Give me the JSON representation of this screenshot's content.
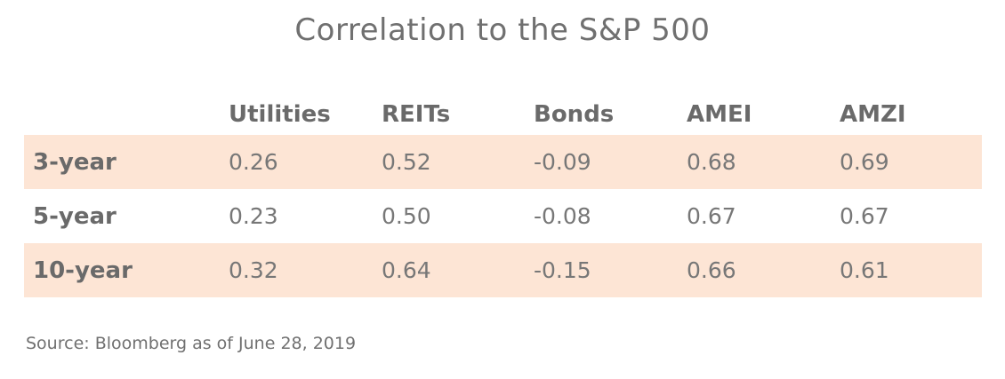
{
  "chart_data": {
    "type": "table",
    "title": "Correlation to the S&P 500",
    "columns": [
      "Utilities",
      "REITs",
      "Bonds",
      "AMEI",
      "AMZI"
    ],
    "rows": [
      {
        "label": "3-year",
        "values": [
          "0.26",
          "0.52",
          "-0.09",
          "0.68",
          "0.69"
        ],
        "shaded": true
      },
      {
        "label": "5-year",
        "values": [
          "0.23",
          "0.50",
          "-0.08",
          "0.67",
          "0.67"
        ],
        "shaded": false
      },
      {
        "label": "10-year",
        "values": [
          "0.32",
          "0.64",
          "-0.15",
          "0.66",
          "0.61"
        ],
        "shaded": true
      }
    ],
    "source": "Source: Bloomberg as of June 28, 2019",
    "colors": {
      "band": "#fde5d5",
      "text": "#6f6f6f"
    }
  }
}
